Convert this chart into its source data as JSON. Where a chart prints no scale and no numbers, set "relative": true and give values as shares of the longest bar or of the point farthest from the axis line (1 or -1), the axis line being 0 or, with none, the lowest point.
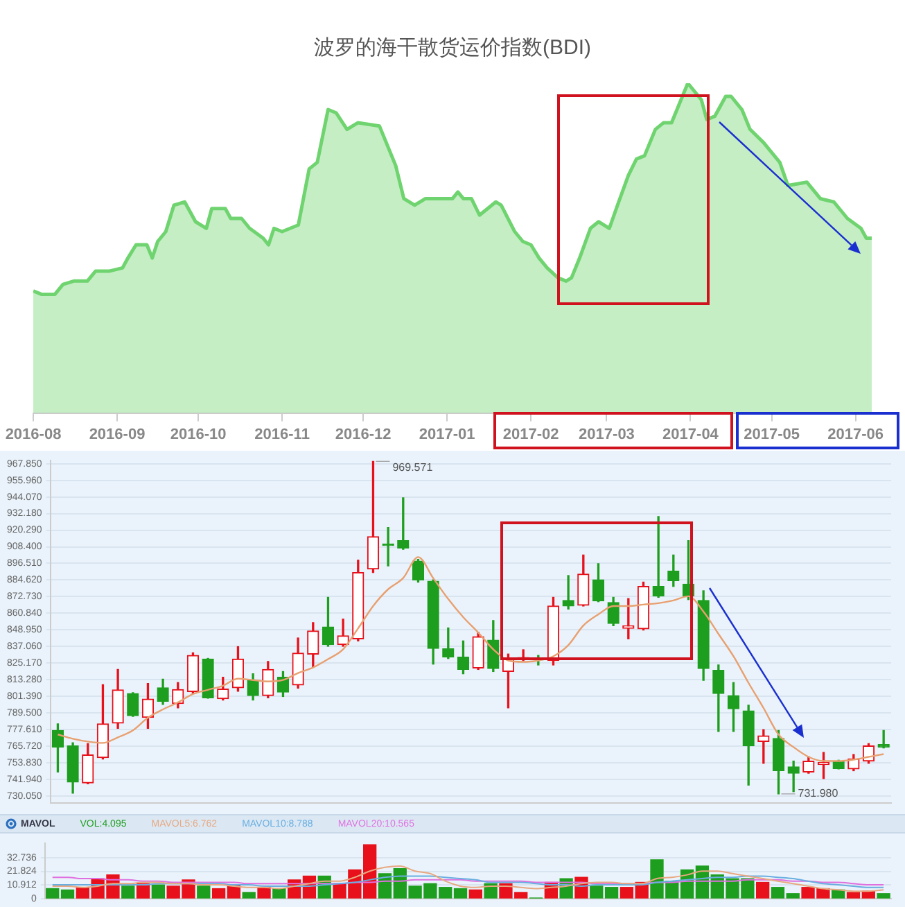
{
  "chart_data": [
    {
      "type": "area",
      "title": "波罗的海干散货运价指数(BDI)",
      "relative": true,
      "color": "#6fd46f",
      "x": [
        "2016-08-01",
        "2016-08-04",
        "2016-08-09",
        "2016-08-12",
        "2016-08-16",
        "2016-08-21",
        "2016-08-24",
        "2016-08-29",
        "2016-09-03",
        "2016-09-05",
        "2016-09-08",
        "2016-09-12",
        "2016-09-14",
        "2016-09-16",
        "2016-09-19",
        "2016-09-22",
        "2016-09-26",
        "2016-09-30",
        "2016-10-04",
        "2016-10-06",
        "2016-10-11",
        "2016-10-13",
        "2016-10-17",
        "2016-10-20",
        "2016-10-25",
        "2016-10-27",
        "2016-10-29",
        "2016-11-01",
        "2016-11-04",
        "2016-11-07",
        "2016-11-11",
        "2016-11-14",
        "2016-11-18",
        "2016-11-21",
        "2016-11-25",
        "2016-11-29",
        "2016-12-07",
        "2016-12-10",
        "2016-12-13",
        "2016-12-16",
        "2016-12-20",
        "2016-12-24",
        "2017-01-03",
        "2017-01-05",
        "2017-01-07",
        "2017-01-10",
        "2017-01-13",
        "2017-01-16",
        "2017-01-19",
        "2017-01-21",
        "2017-01-26",
        "2017-01-29",
        "2017-02-01",
        "2017-02-04",
        "2017-02-07",
        "2017-02-11",
        "2017-02-14",
        "2017-02-16",
        "2017-02-19",
        "2017-02-23",
        "2017-02-26",
        "2017-03-02",
        "2017-03-05",
        "2017-03-09",
        "2017-03-12",
        "2017-03-15",
        "2017-03-19",
        "2017-03-22",
        "2017-03-25",
        "2017-03-28",
        "2017-03-31",
        "2017-04-02",
        "2017-04-05",
        "2017-04-07",
        "2017-04-10",
        "2017-04-14",
        "2017-04-16",
        "2017-04-20",
        "2017-04-23",
        "2017-04-28",
        "2017-05-04",
        "2017-05-07",
        "2017-05-14",
        "2017-05-19",
        "2017-05-24",
        "2017-05-29",
        "2017-06-03",
        "2017-06-05",
        "2017-06-07"
      ],
      "values": [
        0.37,
        0.36,
        0.36,
        0.39,
        0.4,
        0.4,
        0.43,
        0.43,
        0.44,
        0.47,
        0.51,
        0.51,
        0.47,
        0.52,
        0.55,
        0.63,
        0.64,
        0.58,
        0.56,
        0.62,
        0.62,
        0.59,
        0.59,
        0.56,
        0.53,
        0.51,
        0.56,
        0.55,
        0.56,
        0.57,
        0.74,
        0.76,
        0.92,
        0.91,
        0.86,
        0.88,
        0.87,
        0.81,
        0.75,
        0.65,
        0.63,
        0.65,
        0.65,
        0.67,
        0.65,
        0.65,
        0.6,
        0.62,
        0.64,
        0.63,
        0.55,
        0.52,
        0.51,
        0.47,
        0.44,
        0.41,
        0.4,
        0.41,
        0.47,
        0.56,
        0.58,
        0.56,
        0.63,
        0.72,
        0.77,
        0.78,
        0.86,
        0.88,
        0.88,
        0.94,
        1,
        0.98,
        0.95,
        0.89,
        0.9,
        0.96,
        0.96,
        0.92,
        0.86,
        0.82,
        0.76,
        0.69,
        0.7,
        0.65,
        0.64,
        0.59,
        0.56,
        0.53,
        0.53
      ],
      "xlim": [
        "2016-08-01",
        "2017-06-07"
      ],
      "xticks": [
        {
          "value": "2016-08-01",
          "label": "2016-08"
        },
        {
          "value": "2016-09-01",
          "label": "2016-09"
        },
        {
          "value": "2016-10-01",
          "label": "2016-10"
        },
        {
          "value": "2016-11-01",
          "label": "2016-11"
        },
        {
          "value": "2016-12-01",
          "label": "2016-12"
        },
        {
          "value": "2017-01-01",
          "label": "2017-01"
        },
        {
          "value": "2017-02-01",
          "label": "2017-02"
        },
        {
          "value": "2017-03-01",
          "label": "2017-03"
        },
        {
          "value": "2017-04-01",
          "label": "2017-04"
        },
        {
          "value": "2017-05-01",
          "label": "2017-05"
        },
        {
          "value": "2017-06-01",
          "label": "2017-06"
        }
      ]
    },
    {
      "type": "candlestick",
      "categories": [
        null,
        null,
        null,
        null,
        null,
        null,
        null,
        null,
        null,
        null,
        null,
        null,
        null,
        null,
        null,
        null,
        null,
        null,
        null,
        null,
        null,
        null,
        null,
        null,
        null,
        null,
        null,
        null,
        null,
        null,
        null,
        null,
        null,
        null,
        null,
        null,
        null,
        null,
        null,
        null,
        null,
        null,
        null,
        null,
        null,
        null,
        null,
        null,
        null,
        null,
        null,
        null,
        null,
        null,
        null,
        null
      ],
      "ohlc": [
        [
          776.9,
          781.6,
          747.2,
          765.0
        ],
        [
          765.9,
          768.1,
          731.98,
          740.0
        ],
        [
          739.4,
          767.5,
          738.7,
          759.4
        ],
        [
          757.5,
          809.7,
          756.5,
          781.6
        ],
        [
          782.2,
          820.6,
          778.4,
          805.9
        ],
        [
          803.4,
          804,
          787,
          787.5
        ],
        [
          786.2,
          810.6,
          778.4,
          799.4
        ],
        [
          807.5,
          813.7,
          795.6,
          797.8
        ],
        [
          796.2,
          811.2,
          793.1,
          806.2
        ],
        [
          804.7,
          832.5,
          803.4,
          830.6
        ],
        [
          828.1,
          828.5,
          800,
          800.3
        ],
        [
          799.7,
          815.0,
          798.7,
          806.6
        ],
        [
          807.5,
          836.9,
          805.0,
          828.1
        ],
        [
          812.8,
          817.5,
          798.7,
          801.9
        ],
        [
          801.9,
          826.3,
          800.3,
          820.6
        ],
        [
          815.0,
          819.1,
          801.2,
          804.4
        ],
        [
          809.4,
          843.1,
          807.2,
          832.2
        ],
        [
          831.6,
          854.1,
          822.2,
          848.1
        ],
        [
          851.0,
          872.2,
          837.2,
          838.4
        ],
        [
          838.4,
          856.6,
          837.2,
          844.7
        ],
        [
          842.5,
          898.8,
          841.0,
          890.0
        ],
        [
          892.5,
          969.571,
          890.0,
          915.7
        ],
        [
          910.3,
          922.2,
          894.7,
          909.4
        ],
        [
          912.8,
          943.5,
          906.6,
          907.5
        ],
        [
          898.2,
          899.4,
          883.1,
          884.7
        ],
        [
          883.8,
          884.7,
          824.4,
          835.6
        ],
        [
          835.3,
          850.3,
          828.4,
          829.4
        ],
        [
          829.4,
          841.0,
          817.5,
          820.6
        ],
        [
          821.6,
          847.2,
          820.6,
          844.1
        ],
        [
          841.6,
          855.6,
          819.1,
          821.3
        ],
        [
          819.1,
          831.6,
          793.1,
          828.1
        ],
        [
          828.1,
          834.7,
          826.9,
          829.1
        ],
        [
          828.1,
          830.6,
          823.8,
          827.5
        ],
        [
          826.9,
          872.2,
          823.8,
          866.0
        ],
        [
          870.0,
          887.8,
          863.8,
          866.0
        ],
        [
          866.6,
          902.5,
          866.0,
          888.8
        ],
        [
          884.7,
          896.3,
          869.1,
          869.7
        ],
        [
          868.5,
          872.2,
          851.9,
          853.5
        ],
        [
          850.0,
          871.3,
          842.5,
          851.9
        ],
        [
          849.7,
          883.1,
          848.8,
          880.0
        ],
        [
          880.0,
          930.0,
          872.2,
          873.1
        ],
        [
          891.0,
          902.5,
          880.0,
          884.1
        ],
        [
          881.6,
          912.8,
          870.6,
          873.1
        ],
        [
          870.0,
          876.9,
          812.8,
          821.3
        ],
        [
          820.0,
          823.8,
          776.2,
          803.4
        ],
        [
          801.9,
          811.2,
          776.2,
          792.5
        ],
        [
          790.9,
          795.0,
          737.8,
          765.9
        ],
        [
          769.0,
          777.5,
          753.4,
          773.1
        ],
        [
          771.2,
          776.9,
          731.5,
          748.1
        ],
        [
          750.9,
          755.0,
          733.1,
          746.3
        ],
        [
          747.2,
          758.1,
          746.3,
          755.0
        ],
        [
          752.5,
          761.2,
          742.5,
          754.0
        ],
        [
          755.0,
          755.6,
          749.4,
          749.7
        ],
        [
          749.4,
          759.7,
          748.1,
          756.6
        ],
        [
          755.0,
          767.5,
          753.4,
          765.9
        ],
        [
          766.9,
          776.9,
          764.4,
          765.0
        ]
      ],
      "colors": [
        "#1e9e1e",
        "#1e9e1e",
        "#e8101a",
        "#e8101a",
        "#e8101a",
        "#1e9e1e",
        "#e8101a",
        "#1e9e1e",
        "#e8101a",
        "#e8101a",
        "#1e9e1e",
        "#e8101a",
        "#e8101a",
        "#1e9e1e",
        "#e8101a",
        "#1e9e1e",
        "#e8101a",
        "#e8101a",
        "#1e9e1e",
        "#e8101a",
        "#e8101a",
        "#e8101a",
        "#1e9e1e",
        "#1e9e1e",
        "#1e9e1e",
        "#1e9e1e",
        "#1e9e1e",
        "#1e9e1e",
        "#e8101a",
        "#1e9e1e",
        "#e8101a",
        "#e8101a",
        "#1e9e1e",
        "#e8101a",
        "#1e9e1e",
        "#e8101a",
        "#1e9e1e",
        "#1e9e1e",
        "#e8101a",
        "#e8101a",
        "#1e9e1e",
        "#1e9e1e",
        "#1e9e1e",
        "#1e9e1e",
        "#1e9e1e",
        "#1e9e1e",
        "#1e9e1e",
        "#e8101a",
        "#1e9e1e",
        "#1e9e1e",
        "#e8101a",
        "#e8101a",
        "#1e9e1e",
        "#e8101a",
        "#e8101a",
        "#1e9e1e"
      ],
      "series": [
        {
          "type": "line",
          "color": "#e8a070",
          "values": [
            774,
            771,
            769,
            768,
            772,
            777,
            786,
            792,
            797,
            803,
            806,
            809,
            814,
            813,
            812,
            813,
            818,
            822,
            828,
            835,
            850,
            866,
            878,
            886,
            901,
            886,
            871,
            858,
            847,
            835,
            827,
            826,
            827,
            830,
            838,
            852,
            860,
            866,
            866,
            867,
            868,
            870,
            873,
            862,
            846,
            830,
            811,
            793,
            774,
            765,
            758,
            755,
            755,
            756,
            758,
            760
          ]
        }
      ],
      "ylim": [
        725,
        970
      ],
      "yticks": [
        {
          "value": 730.05,
          "label": "730.050"
        },
        {
          "value": 741.94,
          "label": "741.940"
        },
        {
          "value": 753.83,
          "label": "753.830"
        },
        {
          "value": 765.72,
          "label": "765.720"
        },
        {
          "value": 777.61,
          "label": "777.610"
        },
        {
          "value": 789.5,
          "label": "789.500"
        },
        {
          "value": 801.39,
          "label": "801.390"
        },
        {
          "value": 813.28,
          "label": "813.280"
        },
        {
          "value": 825.17,
          "label": "825.170"
        },
        {
          "value": 837.06,
          "label": "837.060"
        },
        {
          "value": 848.95,
          "label": "848.950"
        },
        {
          "value": 860.84,
          "label": "860.840"
        },
        {
          "value": 872.73,
          "label": "872.730"
        },
        {
          "value": 884.62,
          "label": "884.620"
        },
        {
          "value": 896.51,
          "label": "896.510"
        },
        {
          "value": 908.4,
          "label": "908.400"
        },
        {
          "value": 920.29,
          "label": "920.290"
        },
        {
          "value": 932.18,
          "label": "932.180"
        },
        {
          "value": 944.07,
          "label": "944.070"
        },
        {
          "value": 955.96,
          "label": "955.960"
        },
        {
          "value": 967.85,
          "label": "967.850"
        }
      ],
      "grid": "y",
      "tick_labels": "y",
      "annotations": [
        "969.571",
        "731.980"
      ]
    },
    {
      "type": "bar",
      "categories": [
        null,
        null,
        null,
        null,
        null,
        null,
        null,
        null,
        null,
        null,
        null,
        null,
        null,
        null,
        null,
        null,
        null,
        null,
        null,
        null,
        null,
        null,
        null,
        null,
        null,
        null,
        null,
        null,
        null,
        null,
        null,
        null,
        null,
        null,
        null,
        null,
        null,
        null,
        null,
        null,
        null,
        null,
        null,
        null,
        null,
        null,
        null,
        null,
        null,
        null,
        null,
        null,
        null,
        null,
        null,
        null
      ],
      "series": [
        {
          "name": "VOL:4.095",
          "type": "bar",
          "colors": [
            "#1e9e1e",
            "#1e9e1e",
            "#e8101a",
            "#e8101a",
            "#e8101a",
            "#1e9e1e",
            "#e8101a",
            "#1e9e1e",
            "#e8101a",
            "#e8101a",
            "#1e9e1e",
            "#e8101a",
            "#e8101a",
            "#1e9e1e",
            "#e8101a",
            "#1e9e1e",
            "#e8101a",
            "#e8101a",
            "#1e9e1e",
            "#e8101a",
            "#e8101a",
            "#e8101a",
            "#1e9e1e",
            "#1e9e1e",
            "#1e9e1e",
            "#1e9e1e",
            "#1e9e1e",
            "#1e9e1e",
            "#e8101a",
            "#1e9e1e",
            "#e8101a",
            "#e8101a",
            "#1e9e1e",
            "#e8101a",
            "#1e9e1e",
            "#e8101a",
            "#1e9e1e",
            "#1e9e1e",
            "#e8101a",
            "#e8101a",
            "#1e9e1e",
            "#1e9e1e",
            "#1e9e1e",
            "#1e9e1e",
            "#1e9e1e",
            "#1e9e1e",
            "#1e9e1e",
            "#e8101a",
            "#1e9e1e",
            "#1e9e1e",
            "#e8101a",
            "#e8101a",
            "#1e9e1e",
            "#e8101a",
            "#e8101a",
            "#1e9e1e"
          ],
          "values": [
            8,
            7,
            9,
            16,
            19,
            10,
            12,
            11,
            10,
            15,
            10,
            8,
            11,
            5,
            9,
            8,
            15,
            18,
            18,
            12,
            23,
            43,
            20,
            24,
            10,
            12,
            9,
            8,
            7,
            12,
            12,
            5,
            0.5,
            13,
            16,
            17,
            10,
            9,
            9,
            13,
            31,
            14,
            23,
            26,
            19,
            16,
            16,
            13,
            9,
            4,
            9,
            8,
            7,
            5,
            6,
            4
          ]
        },
        {
          "name": "MAVOL5:6.762",
          "type": "line",
          "color": "#e8a880",
          "values": [
            10,
            10,
            9,
            10,
            12,
            12,
            13,
            13,
            12,
            12,
            11,
            11,
            10,
            9,
            9,
            8,
            10,
            12,
            14,
            14,
            17,
            22,
            25,
            26,
            22,
            20,
            14,
            10,
            9,
            10,
            10,
            9,
            8,
            9,
            10,
            12,
            13,
            13,
            12,
            12,
            16,
            17,
            19,
            22,
            22,
            20,
            18,
            16,
            14,
            12,
            10,
            8,
            7,
            6,
            6,
            7
          ]
        },
        {
          "name": "MAVOL10:8.788",
          "type": "line",
          "color": "#6aaee0",
          "values": [
            11,
            11,
            11,
            11,
            11,
            11,
            11,
            12,
            12,
            12,
            12,
            12,
            11,
            11,
            10,
            10,
            10,
            10,
            11,
            12,
            13,
            15,
            17,
            18,
            18,
            18,
            17,
            16,
            15,
            13,
            13,
            13,
            12,
            11,
            11,
            10,
            11,
            11,
            11,
            11,
            13,
            14,
            15,
            16,
            17,
            17,
            18,
            18,
            17,
            16,
            14,
            12,
            11,
            10,
            9,
            9
          ]
        },
        {
          "name": "MAVOL20:10.565",
          "type": "line",
          "color": "#e070e0",
          "values": [
            17,
            17,
            16,
            16,
            15,
            15,
            14,
            14,
            13,
            13,
            13,
            13,
            13,
            12,
            12,
            12,
            12,
            12,
            12,
            12,
            13,
            13,
            14,
            14,
            15,
            15,
            15,
            15,
            14,
            14,
            14,
            14,
            13,
            13,
            13,
            13,
            12,
            12,
            12,
            12,
            13,
            13,
            14,
            14,
            14,
            14,
            15,
            15,
            15,
            14,
            14,
            13,
            13,
            12,
            11,
            11
          ]
        }
      ],
      "ylim": [
        0,
        44
      ],
      "yticks": [
        0,
        10.912,
        21.824,
        32.736
      ],
      "grid": "y",
      "tick_labels": "y",
      "legend": "top left",
      "annotations": [
        "MAVOL"
      ]
    }
  ]
}
